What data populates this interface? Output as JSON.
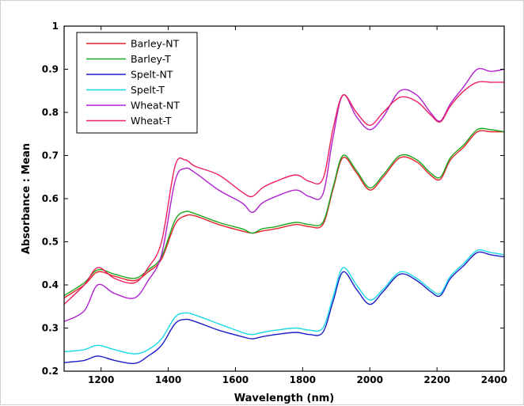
{
  "chart_data": {
    "type": "line",
    "title": "",
    "xlabel": "Wavelength (nm)",
    "ylabel": "Absorbance : Mean",
    "xlim": [
      1090,
      2400
    ],
    "ylim": [
      0.2,
      1.0
    ],
    "xticks": [
      1200,
      1400,
      1600,
      1800,
      2000,
      2200,
      2400
    ],
    "xtick_labels": [
      "1200",
      "1400",
      "1600",
      "1800",
      "2000",
      "2200",
      "2400"
    ],
    "yticks": [
      0.2,
      0.3,
      0.4,
      0.5,
      0.6,
      0.7,
      0.8,
      0.9,
      1.0
    ],
    "ytick_labels": [
      "0.2",
      "0.3",
      "0.4",
      "0.5",
      "0.6",
      "0.7",
      "0.8",
      "0.9",
      "1"
    ],
    "grid": false,
    "legend_position": "top-left",
    "x": [
      1090,
      1150,
      1190,
      1240,
      1300,
      1340,
      1380,
      1420,
      1450,
      1480,
      1550,
      1620,
      1650,
      1680,
      1720,
      1780,
      1820,
      1860,
      1890,
      1920,
      1960,
      2000,
      2040,
      2090,
      2140,
      2180,
      2210,
      2240,
      2280,
      2320,
      2360,
      2400
    ],
    "series": [
      {
        "name": "Barley-NT",
        "color": "#e8202c",
        "values": [
          0.37,
          0.4,
          0.43,
          0.42,
          0.41,
          0.43,
          0.46,
          0.54,
          0.56,
          0.56,
          0.54,
          0.525,
          0.52,
          0.525,
          0.53,
          0.54,
          0.535,
          0.54,
          0.62,
          0.695,
          0.66,
          0.62,
          0.65,
          0.695,
          0.685,
          0.655,
          0.645,
          0.69,
          0.72,
          0.755,
          0.755,
          0.755
        ]
      },
      {
        "name": "Barley-T",
        "color": "#1aa81a",
        "values": [
          0.375,
          0.405,
          0.435,
          0.425,
          0.415,
          0.435,
          0.465,
          0.55,
          0.57,
          0.565,
          0.545,
          0.53,
          0.52,
          0.53,
          0.535,
          0.545,
          0.54,
          0.545,
          0.625,
          0.7,
          0.665,
          0.625,
          0.655,
          0.7,
          0.69,
          0.66,
          0.65,
          0.695,
          0.725,
          0.76,
          0.76,
          0.755
        ]
      },
      {
        "name": "Spelt-NT",
        "color": "#1c1cc8",
        "values": [
          0.22,
          0.225,
          0.235,
          0.225,
          0.218,
          0.235,
          0.26,
          0.31,
          0.32,
          0.315,
          0.295,
          0.28,
          0.275,
          0.28,
          0.285,
          0.29,
          0.285,
          0.29,
          0.36,
          0.43,
          0.39,
          0.355,
          0.385,
          0.425,
          0.41,
          0.385,
          0.375,
          0.415,
          0.445,
          0.475,
          0.47,
          0.465
        ]
      },
      {
        "name": "Spelt-T",
        "color": "#18d8e8",
        "values": [
          0.245,
          0.25,
          0.26,
          0.25,
          0.24,
          0.25,
          0.275,
          0.325,
          0.335,
          0.33,
          0.31,
          0.29,
          0.285,
          0.29,
          0.295,
          0.3,
          0.295,
          0.3,
          0.37,
          0.44,
          0.4,
          0.365,
          0.39,
          0.43,
          0.415,
          0.39,
          0.38,
          0.42,
          0.45,
          0.48,
          0.475,
          0.47
        ]
      },
      {
        "name": "Wheat-NT",
        "color": "#b020d0",
        "values": [
          0.315,
          0.34,
          0.4,
          0.38,
          0.37,
          0.41,
          0.47,
          0.64,
          0.67,
          0.66,
          0.62,
          0.59,
          0.568,
          0.59,
          0.605,
          0.62,
          0.605,
          0.61,
          0.74,
          0.84,
          0.79,
          0.76,
          0.79,
          0.85,
          0.84,
          0.8,
          0.78,
          0.82,
          0.86,
          0.9,
          0.895,
          0.9
        ]
      },
      {
        "name": "Wheat-T",
        "color": "#ee2060",
        "values": [
          0.355,
          0.4,
          0.44,
          0.415,
          0.405,
          0.44,
          0.5,
          0.675,
          0.69,
          0.675,
          0.655,
          0.615,
          0.605,
          0.625,
          0.64,
          0.655,
          0.64,
          0.645,
          0.76,
          0.84,
          0.8,
          0.77,
          0.8,
          0.835,
          0.825,
          0.795,
          0.778,
          0.815,
          0.85,
          0.87,
          0.87,
          0.87
        ]
      }
    ]
  }
}
